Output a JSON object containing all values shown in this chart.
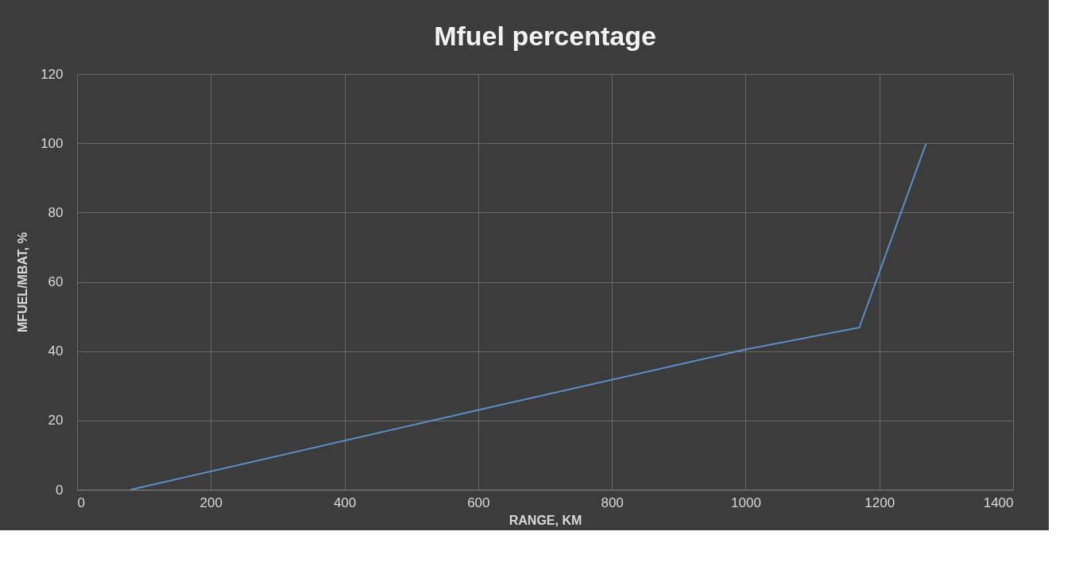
{
  "chart_data": {
    "type": "line",
    "title": "Mfuel percentage",
    "xlabel": "RANGE, KM",
    "ylabel": "MFUEL/MBAT, %",
    "series": [
      {
        "color": "#5b8fc7",
        "x": [
          80,
          600,
          1000,
          1170,
          1270
        ],
        "values": [
          0,
          23,
          40.5,
          46.8,
          100
        ]
      }
    ],
    "xlim": [
      0,
      1400
    ],
    "xticks": [
      0,
      200,
      400,
      600,
      800,
      1000,
      1200,
      1400
    ],
    "ylim": [
      0,
      120
    ],
    "yticks": [
      0,
      20,
      40,
      60,
      80,
      100,
      120
    ],
    "grid": true,
    "marker": "none",
    "line_style": "solid"
  }
}
